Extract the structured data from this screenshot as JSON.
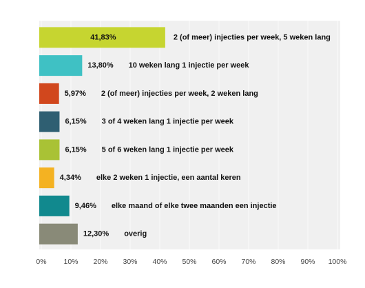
{
  "chart_data": {
    "type": "bar",
    "orientation": "horizontal",
    "categories": [
      "2 (of meer) injecties per week, 5 weken lang",
      "10 weken lang 1 injectie per week",
      "2 (of meer) injecties per week, 2 weken lang",
      "3 of 4 weken lang 1 injectie per week",
      "5 of 6 weken lang 1 injectie per week",
      "elke 2 weken 1 injectie, een aantal keren",
      "elke maand of elke twee maanden een injectie",
      "overig"
    ],
    "values": [
      41.83,
      13.8,
      5.97,
      6.15,
      6.15,
      4.34,
      9.46,
      12.3
    ],
    "value_labels": [
      "41,83%",
      "13,80%",
      "5,97%",
      "6,15%",
      "6,15%",
      "4,34%",
      "9,46%",
      "12,30%"
    ],
    "colors": [
      "#c6d530",
      "#3fc1c4",
      "#d1471d",
      "#2f5f72",
      "#a9c235",
      "#f4b222",
      "#11898e",
      "#898a78"
    ],
    "xlim": [
      0,
      100
    ],
    "xticks": [
      {
        "value": 0,
        "label": "0%"
      },
      {
        "value": 10,
        "label": "10%"
      },
      {
        "value": 20,
        "label": "20%"
      },
      {
        "value": 30,
        "label": "30%"
      },
      {
        "value": 40,
        "label": "40%"
      },
      {
        "value": 50,
        "label": "50%"
      },
      {
        "value": 60,
        "label": "60%"
      },
      {
        "value": 70,
        "label": "70%"
      },
      {
        "value": 80,
        "label": "80%"
      },
      {
        "value": 90,
        "label": "90%"
      },
      {
        "value": 100,
        "label": "100%"
      }
    ],
    "grid": true
  }
}
